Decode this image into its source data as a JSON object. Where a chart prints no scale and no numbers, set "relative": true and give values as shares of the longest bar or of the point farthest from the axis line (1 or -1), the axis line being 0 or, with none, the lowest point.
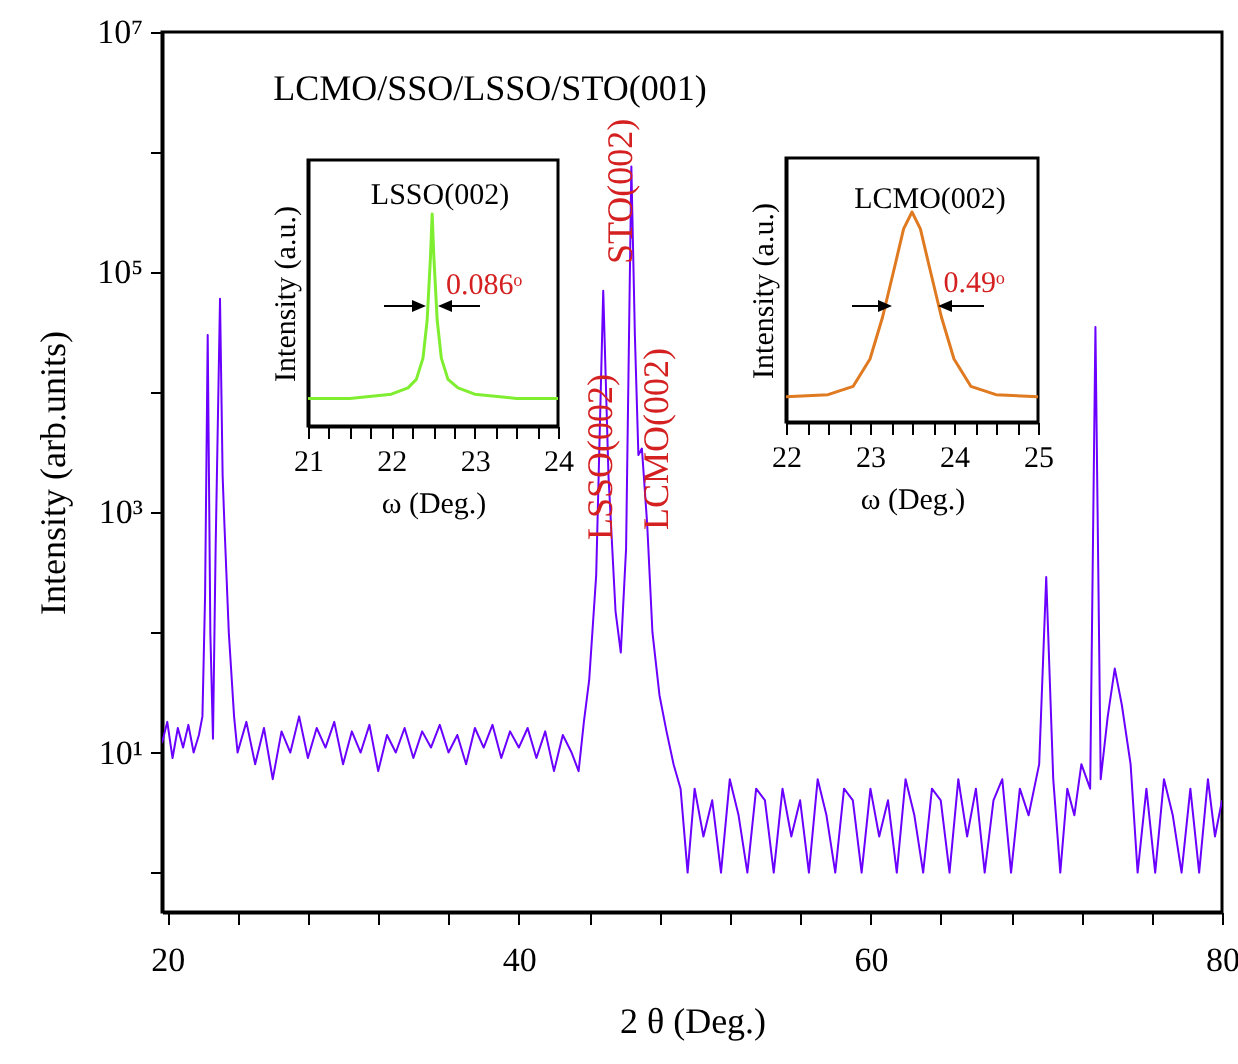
{
  "chart_data": [
    {
      "type": "line",
      "title": "LCMO/SSO/LSSO/STO(001)",
      "xlabel": "2 θ (Deg.)",
      "ylabel": "Intensity (arb.units)",
      "log": "y",
      "xlim": [
        19.7,
        80
      ],
      "ylim": [
        0.47,
        10000000
      ],
      "xticks": [
        20,
        {
          "value": 24,
          "label": null
        },
        {
          "value": 28,
          "label": null
        },
        {
          "value": 32,
          "label": null
        },
        {
          "value": 36,
          "label": null
        },
        40,
        {
          "value": 44,
          "label": null
        },
        {
          "value": 48,
          "label": null
        },
        {
          "value": 52,
          "label": null
        },
        {
          "value": 56,
          "label": null
        },
        60,
        {
          "value": 64,
          "label": null
        },
        {
          "value": 68,
          "label": null
        },
        {
          "value": 72,
          "label": null
        },
        {
          "value": 76,
          "label": null
        },
        80
      ],
      "yticks": [
        {
          "value": 1,
          "label": null
        },
        {
          "value": 10,
          "label": "10¹"
        },
        {
          "value": 100,
          "label": null
        },
        {
          "value": 1000,
          "label": "10³"
        },
        {
          "value": 10000,
          "label": null
        },
        {
          "value": 100000,
          "label": "10⁵"
        },
        {
          "value": 1000000,
          "label": null
        },
        {
          "value": 10000000,
          "label": "10⁷"
        }
      ],
      "annotations": [
        "LSSO(002)",
        "STO(002)",
        "LCMO(002)"
      ],
      "series": [
        {
          "color": "#6a00ff",
          "x": [
            19.7,
            20,
            20.3,
            20.6,
            20.9,
            21.2,
            21.5,
            21.8,
            22.0,
            22.15,
            22.3,
            22.45,
            22.6,
            22.75,
            23.0,
            23.15,
            23.25,
            23.5,
            23.8,
            24.0,
            24.5,
            25,
            25.5,
            26,
            26.5,
            27,
            27.5,
            28,
            28.5,
            29,
            29.5,
            30,
            30.5,
            31,
            31.5,
            32,
            32.5,
            33,
            33.5,
            34,
            34.5,
            35,
            35.5,
            36,
            36.5,
            37,
            37.5,
            38,
            38.5,
            39,
            39.5,
            40,
            40.5,
            41,
            41.5,
            42,
            42.5,
            43,
            43.4,
            43.7,
            44.0,
            44.4,
            44.8,
            45.1,
            45.5,
            45.8,
            46.1,
            46.4,
            46.6,
            46.8,
            47.0,
            47.3,
            47.6,
            48.0,
            48.4,
            48.8,
            49.2,
            49.6,
            50,
            50.5,
            51,
            51.5,
            52,
            52.5,
            53,
            53.5,
            54,
            54.5,
            55,
            55.5,
            56,
            56.5,
            57,
            57.5,
            58,
            58.5,
            59,
            59.5,
            60,
            60.5,
            61,
            61.5,
            62,
            62.5,
            63,
            63.5,
            64,
            64.5,
            65,
            65.5,
            66,
            66.5,
            67,
            67.5,
            68,
            68.5,
            69,
            69.6,
            70.0,
            70.4,
            70.8,
            71.2,
            71.6,
            72.0,
            72.5,
            72.8,
            73.1,
            73.5,
            73.9,
            74.3,
            74.8,
            75.2,
            75.7,
            76.2,
            76.7,
            77.2,
            77.7,
            78.2,
            78.7,
            79.2,
            79.6,
            80
          ],
          "values": [
            12,
            18,
            9,
            16,
            11,
            17,
            10,
            14,
            20,
            200,
            30000,
            100,
            13,
            500,
            60000,
            2000,
            800,
            100,
            20,
            10,
            18,
            8,
            16,
            6,
            15,
            10,
            20,
            9,
            16,
            11,
            18,
            8,
            15,
            10,
            17,
            7,
            14,
            10,
            16,
            9,
            15,
            11,
            17,
            10,
            14,
            8,
            16,
            11,
            17,
            9,
            15,
            11,
            16,
            9,
            15,
            7,
            14,
            10,
            7,
            18,
            40,
            300,
            70000,
            2000,
            150,
            68,
            500,
            760000,
            30000,
            3000,
            3400,
            800,
            100,
            30,
            15,
            8,
            5,
            1,
            5,
            2,
            4,
            1,
            6,
            3,
            1,
            5,
            4,
            1,
            5,
            2,
            4,
            1,
            6,
            3,
            1,
            5,
            4,
            1,
            5,
            2,
            4,
            1,
            6,
            3,
            1,
            5,
            4,
            1,
            6,
            2,
            5,
            1,
            4,
            6,
            1,
            5,
            3,
            8,
            290,
            6,
            1,
            5,
            3,
            8,
            5,
            35000,
            6,
            20,
            50,
            25,
            8,
            1,
            5,
            1,
            6,
            3,
            1,
            5,
            1,
            6,
            2,
            4
          ]
        }
      ]
    },
    {
      "type": "line",
      "xlabel": "ω (Deg.)",
      "ylabel": "Intensity (a.u.)",
      "relative": true,
      "xlim": [
        21,
        24
      ],
      "xticks": [
        21,
        {
          "value": 21.25,
          "label": null
        },
        {
          "value": 21.5,
          "label": null
        },
        {
          "value": 21.75,
          "label": null
        },
        22,
        {
          "value": 22.25,
          "label": null
        },
        {
          "value": 22.5,
          "label": null
        },
        {
          "value": 22.75,
          "label": null
        },
        23,
        {
          "value": 23.25,
          "label": null
        },
        {
          "value": 23.5,
          "label": null
        },
        {
          "value": 23.75,
          "label": null
        },
        24
      ],
      "annotations": [
        "LSSO(002)",
        "0.086ᵒ"
      ],
      "series": [
        {
          "color": "#80ee30",
          "x": [
            21,
            21.5,
            22.0,
            22.2,
            22.3,
            22.38,
            22.43,
            22.47,
            22.49,
            22.51,
            22.55,
            22.6,
            22.68,
            22.8,
            23.0,
            23.5,
            24
          ],
          "values": [
            0.13,
            0.13,
            0.15,
            0.18,
            0.22,
            0.32,
            0.5,
            0.8,
            1,
            0.8,
            0.5,
            0.32,
            0.22,
            0.18,
            0.15,
            0.13,
            0.13
          ]
        }
      ]
    },
    {
      "type": "line",
      "xlabel": "ω (Deg.)",
      "ylabel": "Intensity (a.u.)",
      "relative": true,
      "xlim": [
        22,
        25
      ],
      "xticks": [
        22,
        {
          "value": 22.25,
          "label": null
        },
        {
          "value": 22.5,
          "label": null
        },
        {
          "value": 22.75,
          "label": null
        },
        23,
        {
          "value": 23.25,
          "label": null
        },
        {
          "value": 23.5,
          "label": null
        },
        {
          "value": 23.75,
          "label": null
        },
        24,
        {
          "value": 24.25,
          "label": null
        },
        {
          "value": 24.5,
          "label": null
        },
        {
          "value": 24.75,
          "label": null
        },
        25
      ],
      "annotations": [
        "LCMO(002)",
        "0.49ᵒ"
      ],
      "series": [
        {
          "color": "#e07a20",
          "x": [
            22,
            22.5,
            22.8,
            23.0,
            23.15,
            23.3,
            23.4,
            23.5,
            23.6,
            23.7,
            23.85,
            24.0,
            24.2,
            24.5,
            25
          ],
          "values": [
            0.12,
            0.13,
            0.17,
            0.3,
            0.5,
            0.75,
            0.92,
            1,
            0.92,
            0.75,
            0.5,
            0.3,
            0.17,
            0.13,
            0.12
          ]
        }
      ]
    }
  ]
}
